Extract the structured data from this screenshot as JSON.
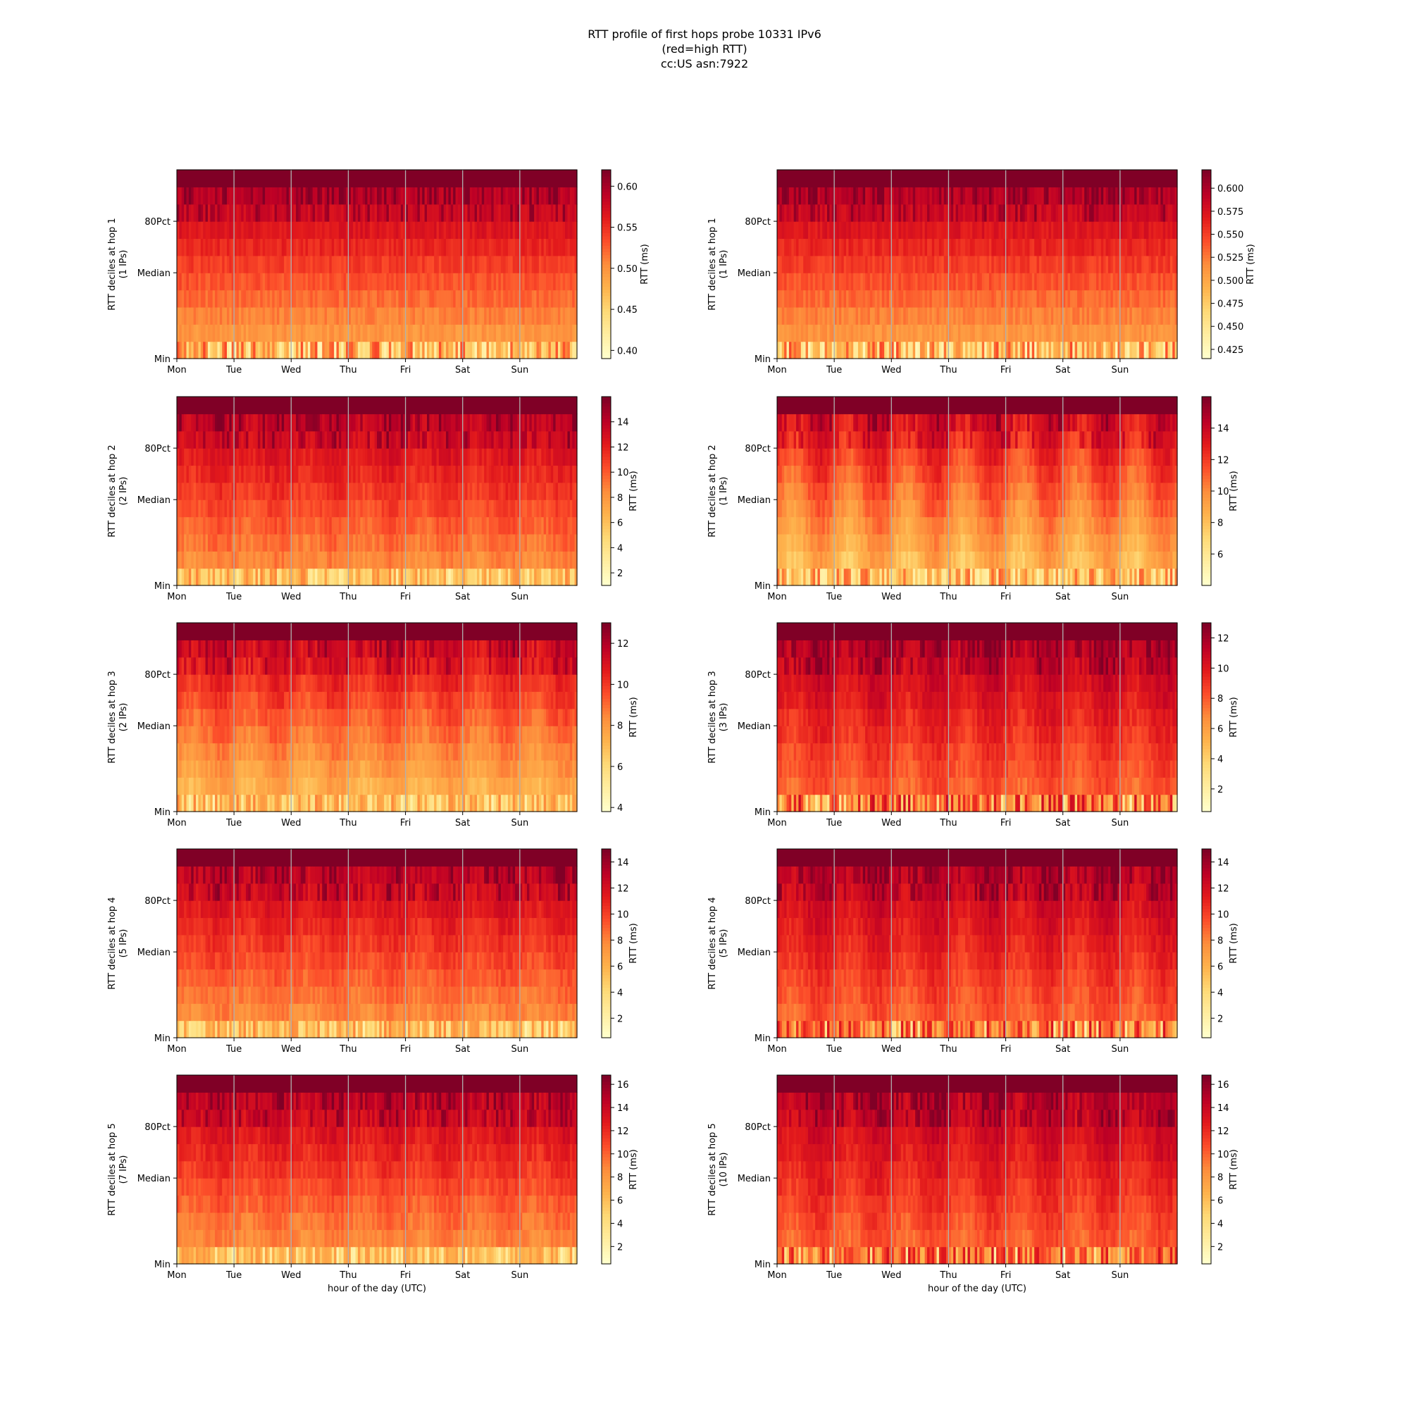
{
  "title_lines": [
    "RTT profile of first hops probe 10331 IPv6",
    "(red=high RTT)",
    "cc:US asn:7922"
  ],
  "chart_data": [
    {
      "type": "heatmap",
      "hop": 1,
      "ylabel": [
        "RTT deciles at hop 1",
        "(1 IPs)"
      ],
      "colorbar_label": "RTT (ms)",
      "colorbar_range": [
        0.39,
        0.62
      ],
      "colorbar_ticks": [
        "0.40",
        "0.45",
        "0.50",
        "0.55",
        "0.60"
      ],
      "profile": "flat",
      "min_noise": 0.6,
      "seed": 11
    },
    {
      "type": "heatmap",
      "hop": 1,
      "ylabel": [
        "RTT deciles at hop 1",
        "(1 IPs)"
      ],
      "colorbar_label": "RTT (ms)",
      "colorbar_range": [
        0.415,
        0.62
      ],
      "colorbar_ticks": [
        "0.425",
        "0.450",
        "0.475",
        "0.500",
        "0.525",
        "0.550",
        "0.575",
        "0.600"
      ],
      "profile": "flat",
      "min_noise": 0.6,
      "seed": 12
    },
    {
      "type": "heatmap",
      "hop": 2,
      "ylabel": [
        "RTT deciles at hop 2",
        "(2 IPs)"
      ],
      "colorbar_label": "RTT (ms)",
      "colorbar_range": [
        1,
        16
      ],
      "colorbar_ticks": [
        "2",
        "4",
        "6",
        "8",
        "10",
        "12",
        "14"
      ],
      "profile": "mild",
      "min_noise": 0.35,
      "seed": 21
    },
    {
      "type": "heatmap",
      "hop": 2,
      "ylabel": [
        "RTT deciles at hop 2",
        "(1 IPs)"
      ],
      "colorbar_label": "RTT (ms)",
      "colorbar_range": [
        4,
        16
      ],
      "colorbar_ticks": [
        "6",
        "8",
        "10",
        "12",
        "14"
      ],
      "profile": "diurnal",
      "min_noise": 0.5,
      "seed": 22
    },
    {
      "type": "heatmap",
      "hop": 3,
      "ylabel": [
        "RTT deciles at hop 3",
        "(2 IPs)"
      ],
      "colorbar_label": "RTT (ms)",
      "colorbar_range": [
        3.8,
        13
      ],
      "colorbar_ticks": [
        "4",
        "6",
        "8",
        "10",
        "12"
      ],
      "profile": "light",
      "min_noise": 0.35,
      "seed": 31
    },
    {
      "type": "heatmap",
      "hop": 3,
      "ylabel": [
        "RTT deciles at hop 3",
        "(3 IPs)"
      ],
      "colorbar_label": "RTT (ms)",
      "colorbar_range": [
        0.5,
        13
      ],
      "colorbar_ticks": [
        "2",
        "4",
        "6",
        "8",
        "10",
        "12"
      ],
      "profile": "diurnal_dark",
      "min_noise": 0.6,
      "seed": 32
    },
    {
      "type": "heatmap",
      "hop": 4,
      "ylabel": [
        "RTT deciles at hop 4",
        "(5 IPs)"
      ],
      "colorbar_label": "RTT (ms)",
      "colorbar_range": [
        0.5,
        15
      ],
      "colorbar_ticks": [
        "2",
        "4",
        "6",
        "8",
        "10",
        "12",
        "14"
      ],
      "profile": "mild",
      "min_noise": 0.35,
      "seed": 41
    },
    {
      "type": "heatmap",
      "hop": 4,
      "ylabel": [
        "RTT deciles at hop 4",
        "(5 IPs)"
      ],
      "colorbar_label": "RTT (ms)",
      "colorbar_range": [
        0.5,
        15
      ],
      "colorbar_ticks": [
        "2",
        "4",
        "6",
        "8",
        "10",
        "12",
        "14"
      ],
      "profile": "diurnal_dark",
      "min_noise": 0.5,
      "seed": 42
    },
    {
      "type": "heatmap",
      "hop": 5,
      "ylabel": [
        "RTT deciles at hop 5",
        "(7 IPs)"
      ],
      "colorbar_label": "RTT (ms)",
      "colorbar_range": [
        0.5,
        16.8
      ],
      "colorbar_ticks": [
        "2",
        "4",
        "6",
        "8",
        "10",
        "12",
        "14",
        "16"
      ],
      "profile": "mild",
      "min_noise": 0.25,
      "seed": 51
    },
    {
      "type": "heatmap",
      "hop": 5,
      "ylabel": [
        "RTT deciles at hop 5",
        "(10 IPs)"
      ],
      "colorbar_label": "RTT (ms)",
      "colorbar_range": [
        0.5,
        16.8
      ],
      "colorbar_ticks": [
        "2",
        "4",
        "6",
        "8",
        "10",
        "12",
        "14",
        "16"
      ],
      "profile": "diurnal_dark",
      "min_noise": 0.5,
      "seed": 52
    }
  ],
  "x_ticks": [
    "Mon",
    "Tue",
    "Wed",
    "Thu",
    "Fri",
    "Sat",
    "Sun"
  ],
  "y_ticks": [
    "Min",
    "Median",
    "80Pct"
  ],
  "xlabel": "hour of the day (UTC)",
  "colormap": [
    "#ffffcc",
    "#ffeda0",
    "#fed976",
    "#feb24c",
    "#fd8d3c",
    "#fc4e2a",
    "#e31a1c",
    "#bd0026",
    "#800026"
  ],
  "gridline_color": "#b0b0b0"
}
